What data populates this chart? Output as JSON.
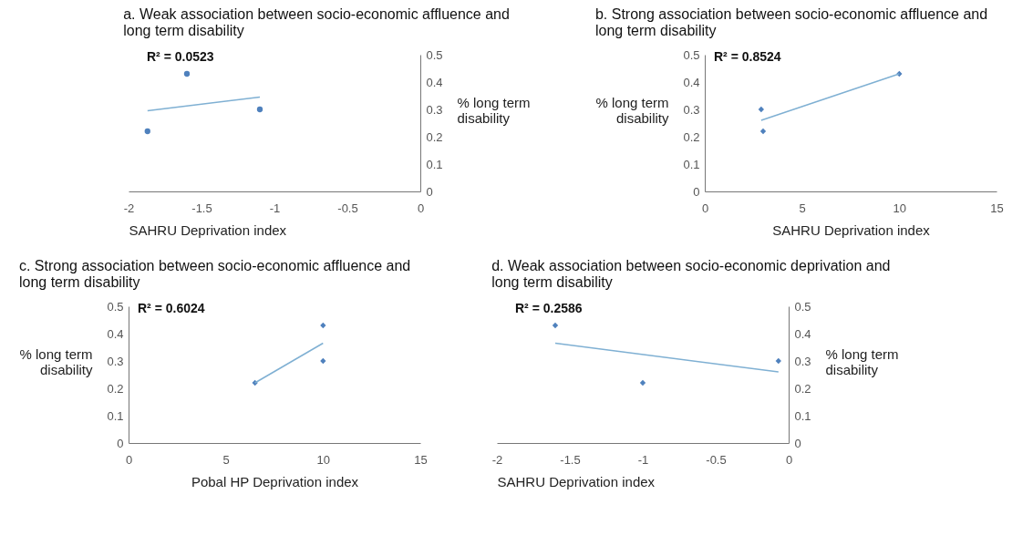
{
  "chart_data": [
    {
      "type": "scatter",
      "title": "a.  Weak association between socio-economic affluence and long term disability",
      "xlabel": "SAHRU Deprivation index",
      "ylabel": "% long term disability",
      "annotations": [
        "R² = 0.0523"
      ],
      "xlim": [
        -2,
        0
      ],
      "xticks": [
        -2,
        -1.5,
        -1,
        -0.5,
        0
      ],
      "ylim": [
        0,
        0.5
      ],
      "yticks": [
        0,
        0.1,
        0.2,
        0.3,
        0.4,
        0.5
      ],
      "marker": "circle",
      "series": [
        {
          "type": "scatter",
          "color": "#4f81bd",
          "x": [
            -1.87,
            -1.6,
            -1.1
          ],
          "values": [
            0.22,
            0.43,
            0.3
          ]
        },
        {
          "type": "line",
          "color": "#7fb0d3",
          "line_style": "solid",
          "marker": "none",
          "x": [
            -1.87,
            -1.1
          ],
          "values": [
            0.295,
            0.345
          ]
        }
      ]
    },
    {
      "type": "scatter",
      "title": "b. Strong association between socio-economic affluence and long term disability",
      "xlabel": "SAHRU Deprivation index",
      "ylabel": "% long term disability",
      "annotations": [
        "R² = 0.8524"
      ],
      "xlim": [
        0,
        15
      ],
      "xticks": [
        0,
        5,
        10,
        15
      ],
      "ylim": [
        0,
        0.5
      ],
      "yticks": [
        0,
        0.1,
        0.2,
        0.3,
        0.4,
        0.5
      ],
      "marker": "diamond",
      "series": [
        {
          "type": "scatter",
          "color": "#4f81bd",
          "x": [
            2.9,
            3,
            10
          ],
          "values": [
            0.3,
            0.22,
            0.43
          ]
        },
        {
          "type": "line",
          "color": "#7fb0d3",
          "line_style": "solid",
          "marker": "none",
          "x": [
            2.9,
            10
          ],
          "values": [
            0.26,
            0.43
          ]
        }
      ]
    },
    {
      "type": "scatter",
      "title": "c. Strong association between socio-economic affluence and long term disability",
      "xlabel": "Pobal HP Deprivation index",
      "ylabel": "% long term disability",
      "annotations": [
        "R² = 0.6024"
      ],
      "xlim": [
        0,
        15
      ],
      "xticks": [
        0,
        5,
        10,
        15
      ],
      "ylim": [
        0,
        0.5
      ],
      "yticks": [
        0,
        0.1,
        0.2,
        0.3,
        0.4,
        0.5
      ],
      "marker": "diamond",
      "series": [
        {
          "type": "scatter",
          "color": "#4f81bd",
          "x": [
            6.5,
            10,
            10
          ],
          "values": [
            0.22,
            0.43,
            0.3
          ]
        },
        {
          "type": "line",
          "color": "#7fb0d3",
          "line_style": "solid",
          "marker": "none",
          "x": [
            6.5,
            10
          ],
          "values": [
            0.22,
            0.365
          ]
        }
      ]
    },
    {
      "type": "scatter",
      "title": "d.  Weak association between socio-economic deprivation and long term disability",
      "xlabel": "SAHRU Deprivation index",
      "ylabel": "% long term disability",
      "annotations": [
        "R² = 0.2586"
      ],
      "xlim": [
        -2,
        0
      ],
      "xticks": [
        -2,
        -1.5,
        -1,
        -0.5,
        0
      ],
      "ylim": [
        0,
        0.5
      ],
      "yticks": [
        0,
        0.1,
        0.2,
        0.3,
        0.4,
        0.5
      ],
      "marker": "diamond",
      "series": [
        {
          "type": "scatter",
          "color": "#4f81bd",
          "x": [
            -1.6,
            -1,
            -0.07
          ],
          "values": [
            0.43,
            0.22,
            0.3
          ]
        },
        {
          "type": "line",
          "color": "#7fb0d3",
          "line_style": "solid",
          "marker": "none",
          "x": [
            -1.6,
            -0.07
          ],
          "values": [
            0.365,
            0.26
          ]
        }
      ]
    }
  ]
}
